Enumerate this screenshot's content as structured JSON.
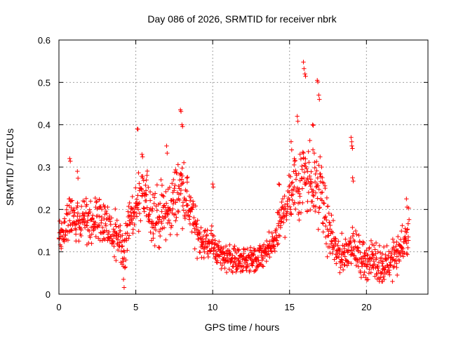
{
  "chart_data": {
    "type": "scatter",
    "title": "Day 086 of 2026, SRMTID for receiver nbrk",
    "xlabel": "GPS time / hours",
    "ylabel": "SRMTID / TECUs",
    "xlim": [
      0,
      24
    ],
    "ylim": [
      0,
      0.6
    ],
    "xticks": [
      0,
      5,
      10,
      15,
      20
    ],
    "yticks": [
      0,
      0.1,
      0.2,
      0.3,
      0.4,
      0.5,
      0.6
    ],
    "xtick_labels": [
      "0",
      "5",
      "10",
      "15",
      "20"
    ],
    "ytick_labels": [
      "0",
      "0.1",
      "0.2",
      "0.3",
      "0.4",
      "0.5",
      "0.6"
    ],
    "grid": true,
    "marker": "+",
    "marker_color": "#ff0000",
    "series": [
      {
        "name": "SRMTID",
        "x_range": [
          0,
          22.75
        ],
        "sample_interval_hours": 0.05,
        "noise_seed": 86,
        "trend": {
          "x": [
            0,
            0.3,
            0.7,
            1,
            1.5,
            2,
            2.5,
            3,
            3.5,
            4,
            4.2,
            4.5,
            5,
            5.5,
            6,
            6.5,
            7,
            7.5,
            8,
            8.5,
            9,
            9.5,
            10,
            10.5,
            11,
            11.5,
            12,
            12.5,
            13,
            13.5,
            14,
            14.5,
            15,
            15.5,
            16,
            16.5,
            17,
            17.5,
            18,
            18.5,
            19,
            19.5,
            20,
            20.5,
            21,
            21.5,
            22,
            22.75
          ],
          "y": [
            0.14,
            0.15,
            0.18,
            0.17,
            0.18,
            0.17,
            0.18,
            0.16,
            0.14,
            0.13,
            0.1,
            0.16,
            0.2,
            0.23,
            0.2,
            0.18,
            0.19,
            0.22,
            0.26,
            0.2,
            0.14,
            0.12,
            0.12,
            0.09,
            0.09,
            0.08,
            0.08,
            0.08,
            0.08,
            0.1,
            0.12,
            0.18,
            0.24,
            0.26,
            0.3,
            0.26,
            0.25,
            0.15,
            0.1,
            0.09,
            0.12,
            0.09,
            0.08,
            0.08,
            0.07,
            0.08,
            0.09,
            0.15
          ]
        },
        "spread": {
          "x": [
            0,
            4,
            5,
            8,
            9,
            10,
            14,
            15,
            16,
            17,
            18,
            19,
            22.75
          ],
          "y": [
            0.05,
            0.05,
            0.06,
            0.07,
            0.04,
            0.03,
            0.03,
            0.07,
            0.1,
            0.07,
            0.04,
            0.04,
            0.04
          ]
        },
        "peaks": [
          {
            "x": 0.7,
            "y": 0.32
          },
          {
            "x": 1.2,
            "y": 0.29
          },
          {
            "x": 4.2,
            "y": 0.035
          },
          {
            "x": 5.1,
            "y": 0.39
          },
          {
            "x": 5.4,
            "y": 0.33
          },
          {
            "x": 7.0,
            "y": 0.35
          },
          {
            "x": 7.9,
            "y": 0.435
          },
          {
            "x": 8.0,
            "y": 0.4
          },
          {
            "x": 10.0,
            "y": 0.26
          },
          {
            "x": 14.3,
            "y": 0.26
          },
          {
            "x": 15.1,
            "y": 0.36
          },
          {
            "x": 15.5,
            "y": 0.42
          },
          {
            "x": 15.9,
            "y": 0.548
          },
          {
            "x": 16.0,
            "y": 0.52
          },
          {
            "x": 16.5,
            "y": 0.4
          },
          {
            "x": 16.8,
            "y": 0.505
          },
          {
            "x": 16.9,
            "y": 0.47
          },
          {
            "x": 19.0,
            "y": 0.37
          },
          {
            "x": 19.05,
            "y": 0.35
          },
          {
            "x": 19.1,
            "y": 0.275
          },
          {
            "x": 21.0,
            "y": 0.03
          },
          {
            "x": 22.6,
            "y": 0.225
          }
        ]
      }
    ]
  }
}
